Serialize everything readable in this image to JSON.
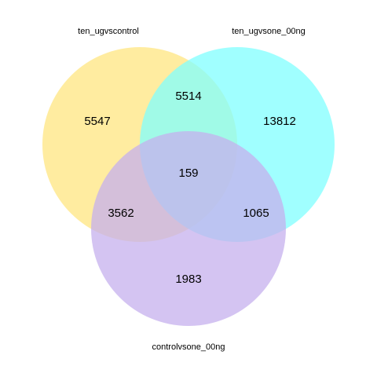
{
  "chart_data": {
    "type": "venn",
    "sets": [
      {
        "name": "ten_ugvscontrol",
        "color": "#ffe680"
      },
      {
        "name": "ten_ugvsone_00ng",
        "color": "#80ffff"
      },
      {
        "name": "controlvsone_00ng",
        "color": "#c5b0ee"
      }
    ],
    "regions": {
      "A_only": 5547,
      "B_only": 13812,
      "C_only": 1983,
      "AB_only": 5514,
      "AC_only": 3562,
      "BC_only": 1065,
      "ABC": 159
    },
    "opacity": 0.75
  }
}
